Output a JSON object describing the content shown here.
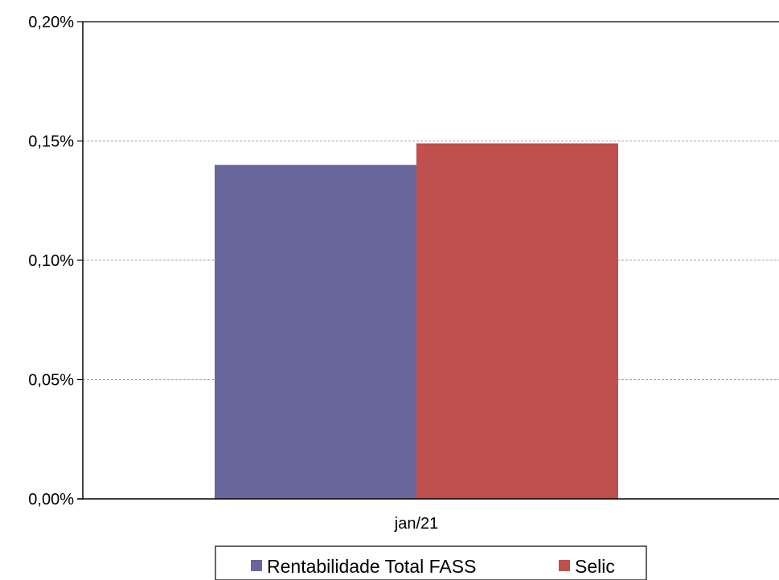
{
  "chart_data": {
    "type": "bar",
    "categories": [
      "jan/21"
    ],
    "series": [
      {
        "name": "Rentabilidade Total FASS",
        "values": [
          0.14
        ],
        "color": "#69669B"
      },
      {
        "name": "Selic",
        "values": [
          0.149
        ],
        "color": "#C0504D"
      }
    ],
    "ylim": [
      0,
      0.2
    ],
    "yticks": [
      {
        "value": 0,
        "label": "0,00%"
      },
      {
        "value": 0.05,
        "label": "0,05%"
      },
      {
        "value": 0.1,
        "label": "0,10%"
      },
      {
        "value": 0.15,
        "label": "0,15%"
      },
      {
        "value": 0.2,
        "label": "0,20%"
      }
    ],
    "grid": true,
    "legend_position": "bottom",
    "title": "",
    "xlabel": "",
    "ylabel": ""
  }
}
